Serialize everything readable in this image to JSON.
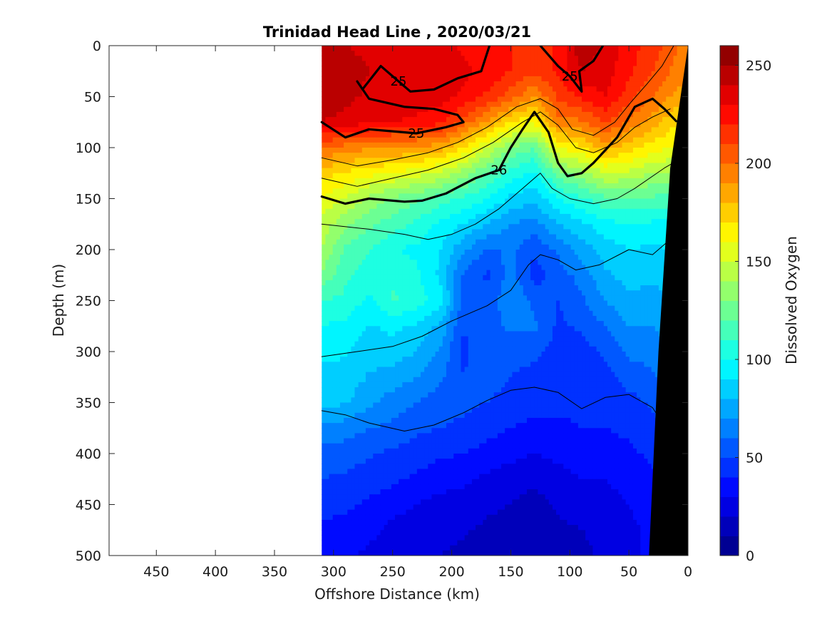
{
  "chart_data": {
    "type": "heatmap",
    "subtype": "filled-contour section",
    "title": "Trinidad Head Line , 2020/03/21",
    "xlabel": "Offshore Distance (km)",
    "ylabel": "Depth (m)",
    "x_reversed": true,
    "y_reversed": true,
    "xlim": [
      490,
      0
    ],
    "ylim": [
      0,
      500
    ],
    "xticks": [
      450,
      400,
      350,
      300,
      250,
      200,
      150,
      100,
      50,
      0
    ],
    "yticks": [
      0,
      50,
      100,
      150,
      200,
      250,
      300,
      350,
      400,
      450,
      500
    ],
    "data_extent_km": [
      310,
      0
    ],
    "colorbar": {
      "label": "Dissolved Oxygen",
      "colormap": "jet",
      "range": [
        0,
        260
      ],
      "ticks": [
        0,
        50,
        100,
        150,
        200,
        250
      ],
      "levels": 26
    },
    "grid": false,
    "x": [
      310,
      290,
      270,
      250,
      230,
      210,
      190,
      170,
      150,
      130,
      110,
      90,
      70,
      50,
      30,
      15,
      8
    ],
    "depths": [
      0,
      25,
      50,
      75,
      100,
      125,
      150,
      175,
      200,
      225,
      250,
      275,
      300,
      325,
      350,
      375,
      400,
      425,
      450,
      475,
      500
    ],
    "oxygen_profiles": [
      [
        245,
        247,
        248,
        240,
        200,
        175,
        160,
        145,
        140,
        128,
        110,
        100,
        92,
        88,
        85,
        68,
        55,
        50,
        44,
        38,
        35
      ],
      [
        240,
        244,
        243,
        236,
        196,
        168,
        150,
        133,
        118,
        112,
        108,
        97,
        91,
        87,
        81,
        65,
        55,
        48,
        42,
        36,
        32
      ],
      [
        238,
        240,
        238,
        232,
        192,
        163,
        138,
        123,
        110,
        106,
        97,
        89,
        84,
        79,
        72,
        60,
        51,
        45,
        38,
        33,
        28
      ],
      [
        238,
        240,
        238,
        230,
        190,
        160,
        128,
        115,
        100,
        108,
        112,
        93,
        85,
        76,
        65,
        58,
        48,
        42,
        34,
        27,
        22
      ],
      [
        236,
        238,
        236,
        228,
        188,
        155,
        122,
        108,
        98,
        102,
        106,
        88,
        80,
        70,
        60,
        52,
        45,
        38,
        30,
        24,
        20
      ],
      [
        233,
        236,
        234,
        223,
        185,
        148,
        115,
        98,
        90,
        88,
        95,
        78,
        68,
        62,
        55,
        50,
        42,
        34,
        27,
        22,
        20
      ],
      [
        228,
        232,
        228,
        205,
        170,
        135,
        108,
        90,
        72,
        58,
        56,
        50,
        48,
        50,
        52,
        48,
        40,
        32,
        26,
        21,
        18
      ],
      [
        225,
        228,
        218,
        188,
        150,
        120,
        100,
        80,
        58,
        48,
        52,
        55,
        55,
        56,
        50,
        44,
        36,
        28,
        22,
        18,
        16
      ],
      [
        220,
        220,
        205,
        170,
        130,
        105,
        88,
        70,
        62,
        65,
        70,
        62,
        55,
        50,
        45,
        40,
        33,
        25,
        20,
        16,
        14
      ],
      [
        215,
        212,
        190,
        162,
        120,
        98,
        82,
        66,
        52,
        45,
        58,
        62,
        54,
        45,
        42,
        38,
        30,
        22,
        16,
        12,
        12
      ],
      [
        222,
        222,
        212,
        195,
        160,
        125,
        100,
        80,
        62,
        55,
        50,
        48,
        45,
        42,
        42,
        38,
        32,
        27,
        22,
        18,
        16
      ],
      [
        248,
        240,
        222,
        198,
        168,
        136,
        108,
        88,
        74,
        64,
        58,
        52,
        46,
        42,
        42,
        40,
        35,
        30,
        24,
        20,
        18
      ],
      [
        238,
        235,
        230,
        212,
        185,
        150,
        118,
        96,
        85,
        78,
        70,
        60,
        52,
        46,
        42,
        40,
        36,
        30,
        26,
        22,
        22
      ],
      [
        225,
        222,
        215,
        198,
        175,
        148,
        120,
        100,
        90,
        84,
        78,
        70,
        62,
        55,
        46,
        42,
        38,
        34,
        30,
        28,
        28
      ],
      [
        215,
        210,
        200,
        185,
        165,
        140,
        118,
        98,
        88,
        82,
        76,
        70,
        64,
        58,
        52,
        46,
        42,
        38,
        34,
        32,
        32
      ],
      [
        205,
        200,
        190,
        175,
        160,
        138,
        115,
        98,
        90,
        85,
        80,
        74,
        70,
        66,
        60,
        54,
        50,
        46,
        42,
        40,
        40
      ],
      [
        200,
        195,
        185,
        170,
        158,
        136,
        116,
        100,
        92,
        88,
        84,
        78,
        74,
        70,
        66,
        60,
        56,
        52,
        48,
        46,
        46
      ]
    ],
    "density_contours": [
      {
        "level": "25",
        "bold": true,
        "label": "25",
        "points": [
          [
            310,
            75
          ],
          [
            290,
            90
          ],
          [
            270,
            82
          ],
          [
            250,
            84
          ],
          [
            230,
            86
          ],
          [
            205,
            80
          ],
          [
            190,
            75
          ],
          [
            195,
            68
          ],
          [
            215,
            62
          ],
          [
            240,
            60
          ],
          [
            270,
            52
          ],
          [
            280,
            35
          ]
        ]
      },
      {
        "level": "25",
        "bold": true,
        "label": "25",
        "points": [
          [
            275,
            42
          ],
          [
            260,
            20
          ],
          [
            245,
            35
          ],
          [
            235,
            45
          ],
          [
            215,
            43
          ],
          [
            195,
            32
          ],
          [
            175,
            25
          ],
          [
            168,
            0
          ]
        ]
      },
      {
        "level": "25",
        "bold": true,
        "label": "25",
        "points": [
          [
            125,
            0
          ],
          [
            110,
            20
          ],
          [
            100,
            30
          ],
          [
            90,
            45
          ],
          [
            92,
            25
          ],
          [
            80,
            15
          ],
          [
            72,
            0
          ]
        ]
      },
      {
        "level": "26",
        "bold": true,
        "label": "26",
        "points": [
          [
            310,
            148
          ],
          [
            290,
            155
          ],
          [
            270,
            150
          ],
          [
            240,
            153
          ],
          [
            225,
            152
          ],
          [
            205,
            145
          ],
          [
            180,
            130
          ],
          [
            160,
            122
          ],
          [
            150,
            100
          ],
          [
            140,
            82
          ],
          [
            130,
            65
          ],
          [
            118,
            85
          ],
          [
            110,
            115
          ],
          [
            102,
            128
          ],
          [
            90,
            125
          ],
          [
            80,
            115
          ],
          [
            60,
            90
          ],
          [
            45,
            60
          ],
          [
            30,
            52
          ],
          [
            20,
            62
          ],
          [
            10,
            74
          ]
        ]
      },
      {
        "level": "thin",
        "bold": false,
        "label": "",
        "points": [
          [
            310,
            175
          ],
          [
            270,
            180
          ],
          [
            240,
            185
          ],
          [
            220,
            190
          ],
          [
            200,
            185
          ],
          [
            180,
            175
          ],
          [
            160,
            160
          ],
          [
            140,
            140
          ],
          [
            125,
            125
          ],
          [
            115,
            140
          ],
          [
            100,
            150
          ],
          [
            80,
            155
          ],
          [
            60,
            150
          ],
          [
            45,
            140
          ],
          [
            20,
            120
          ],
          [
            8,
            112
          ]
        ]
      },
      {
        "level": "thin",
        "bold": false,
        "label": "",
        "points": [
          [
            310,
            305
          ],
          [
            280,
            300
          ],
          [
            250,
            295
          ],
          [
            225,
            285
          ],
          [
            200,
            270
          ],
          [
            170,
            255
          ],
          [
            150,
            240
          ],
          [
            135,
            215
          ],
          [
            125,
            205
          ],
          [
            110,
            210
          ],
          [
            95,
            220
          ],
          [
            75,
            215
          ],
          [
            50,
            200
          ],
          [
            30,
            205
          ],
          [
            15,
            190
          ]
        ]
      },
      {
        "level": "thin",
        "bold": false,
        "label": "",
        "points": [
          [
            310,
            358
          ],
          [
            290,
            362
          ],
          [
            270,
            370
          ],
          [
            240,
            378
          ],
          [
            215,
            372
          ],
          [
            190,
            360
          ],
          [
            170,
            348
          ],
          [
            150,
            338
          ],
          [
            130,
            335
          ],
          [
            110,
            340
          ],
          [
            90,
            356
          ],
          [
            70,
            345
          ],
          [
            50,
            342
          ],
          [
            30,
            355
          ],
          [
            15,
            382
          ]
        ]
      },
      {
        "level": "thin",
        "bold": false,
        "label": "",
        "points": [
          [
            310,
            130
          ],
          [
            280,
            138
          ],
          [
            250,
            130
          ],
          [
            220,
            122
          ],
          [
            190,
            110
          ],
          [
            165,
            95
          ],
          [
            140,
            75
          ],
          [
            125,
            65
          ],
          [
            110,
            78
          ],
          [
            95,
            100
          ],
          [
            80,
            105
          ],
          [
            60,
            95
          ],
          [
            45,
            80
          ],
          [
            30,
            70
          ],
          [
            15,
            62
          ]
        ]
      },
      {
        "level": "thin",
        "bold": false,
        "label": "",
        "points": [
          [
            310,
            110
          ],
          [
            280,
            118
          ],
          [
            250,
            112
          ],
          [
            220,
            105
          ],
          [
            195,
            95
          ],
          [
            170,
            80
          ],
          [
            145,
            60
          ],
          [
            125,
            52
          ],
          [
            110,
            62
          ],
          [
            98,
            82
          ],
          [
            80,
            88
          ],
          [
            62,
            75
          ],
          [
            48,
            55
          ],
          [
            35,
            38
          ],
          [
            22,
            20
          ],
          [
            12,
            0
          ]
        ]
      }
    ]
  }
}
